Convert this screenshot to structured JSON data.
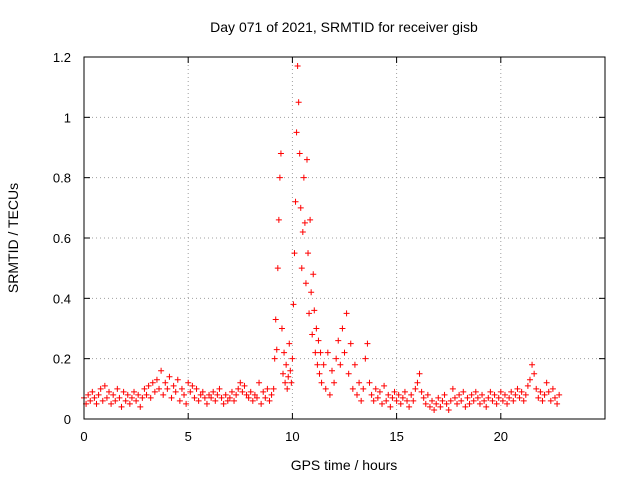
{
  "chart_data": {
    "type": "scatter",
    "title": "Day 071 of 2021, SRMTID for receiver gisb",
    "xlabel": "GPS time / hours",
    "ylabel": "SRMTID / TECUs",
    "xlim": [
      0,
      25
    ],
    "ylim": [
      0,
      1.2
    ],
    "xticks": [
      0,
      5,
      10,
      15,
      20
    ],
    "xtick_labels": [
      "0",
      "5",
      "10",
      "15",
      "20"
    ],
    "yticks": [
      0,
      0.2,
      0.4,
      0.6,
      0.8,
      1.0,
      1.2
    ],
    "ytick_labels": [
      "0",
      "0.2",
      "0.4",
      "0.6",
      "0.8",
      "1",
      "1.2"
    ],
    "grid": true,
    "marker": "+",
    "series": [
      {
        "name": "SRMTID",
        "color": "#ff0000",
        "points": [
          [
            0.0,
            0.07
          ],
          [
            0.1,
            0.05
          ],
          [
            0.2,
            0.08
          ],
          [
            0.3,
            0.06
          ],
          [
            0.4,
            0.09
          ],
          [
            0.5,
            0.07
          ],
          [
            0.6,
            0.05
          ],
          [
            0.7,
            0.08
          ],
          [
            0.8,
            0.1
          ],
          [
            0.9,
            0.06
          ],
          [
            1.0,
            0.11
          ],
          [
            1.1,
            0.07
          ],
          [
            1.2,
            0.09
          ],
          [
            1.3,
            0.05
          ],
          [
            1.4,
            0.08
          ],
          [
            1.5,
            0.06
          ],
          [
            1.6,
            0.1
          ],
          [
            1.7,
            0.07
          ],
          [
            1.8,
            0.04
          ],
          [
            1.9,
            0.09
          ],
          [
            2.0,
            0.06
          ],
          [
            2.1,
            0.08
          ],
          [
            2.2,
            0.05
          ],
          [
            2.3,
            0.07
          ],
          [
            2.4,
            0.09
          ],
          [
            2.5,
            0.06
          ],
          [
            2.6,
            0.08
          ],
          [
            2.7,
            0.04
          ],
          [
            2.8,
            0.07
          ],
          [
            2.9,
            0.1
          ],
          [
            3.0,
            0.08
          ],
          [
            3.1,
            0.11
          ],
          [
            3.2,
            0.07
          ],
          [
            3.3,
            0.12
          ],
          [
            3.4,
            0.09
          ],
          [
            3.5,
            0.13
          ],
          [
            3.6,
            0.1
          ],
          [
            3.7,
            0.16
          ],
          [
            3.8,
            0.08
          ],
          [
            3.9,
            0.12
          ],
          [
            4.0,
            0.1
          ],
          [
            4.1,
            0.14
          ],
          [
            4.2,
            0.07
          ],
          [
            4.3,
            0.11
          ],
          [
            4.4,
            0.09
          ],
          [
            4.5,
            0.13
          ],
          [
            4.6,
            0.06
          ],
          [
            4.7,
            0.1
          ],
          [
            4.8,
            0.08
          ],
          [
            4.9,
            0.05
          ],
          [
            5.0,
            0.12
          ],
          [
            5.1,
            0.09
          ],
          [
            5.2,
            0.11
          ],
          [
            5.3,
            0.07
          ],
          [
            5.4,
            0.1
          ],
          [
            5.5,
            0.06
          ],
          [
            5.6,
            0.08
          ],
          [
            5.7,
            0.09
          ],
          [
            5.8,
            0.07
          ],
          [
            5.9,
            0.05
          ],
          [
            6.0,
            0.08
          ],
          [
            6.1,
            0.07
          ],
          [
            6.2,
            0.09
          ],
          [
            6.3,
            0.06
          ],
          [
            6.4,
            0.08
          ],
          [
            6.5,
            0.1
          ],
          [
            6.6,
            0.07
          ],
          [
            6.7,
            0.05
          ],
          [
            6.8,
            0.08
          ],
          [
            6.9,
            0.06
          ],
          [
            7.0,
            0.07
          ],
          [
            7.1,
            0.09
          ],
          [
            7.2,
            0.06
          ],
          [
            7.3,
            0.08
          ],
          [
            7.4,
            0.1
          ],
          [
            7.5,
            0.12
          ],
          [
            7.6,
            0.09
          ],
          [
            7.7,
            0.11
          ],
          [
            7.8,
            0.08
          ],
          [
            7.9,
            0.07
          ],
          [
            8.0,
            0.09
          ],
          [
            8.1,
            0.06
          ],
          [
            8.2,
            0.08
          ],
          [
            8.3,
            0.07
          ],
          [
            8.4,
            0.12
          ],
          [
            8.5,
            0.05
          ],
          [
            8.6,
            0.09
          ],
          [
            8.7,
            0.07
          ],
          [
            8.8,
            0.1
          ],
          [
            8.9,
            0.06
          ],
          [
            9.0,
            0.08
          ],
          [
            9.1,
            0.1
          ],
          [
            9.15,
            0.2
          ],
          [
            9.2,
            0.33
          ],
          [
            9.25,
            0.23
          ],
          [
            9.3,
            0.5
          ],
          [
            9.35,
            0.66
          ],
          [
            9.4,
            0.8
          ],
          [
            9.45,
            0.88
          ],
          [
            9.5,
            0.3
          ],
          [
            9.55,
            0.15
          ],
          [
            9.6,
            0.22
          ],
          [
            9.65,
            0.12
          ],
          [
            9.7,
            0.18
          ],
          [
            9.75,
            0.1
          ],
          [
            9.8,
            0.14
          ],
          [
            9.85,
            0.25
          ],
          [
            9.9,
            0.16
          ],
          [
            9.95,
            0.12
          ],
          [
            10.0,
            0.2
          ],
          [
            10.05,
            0.38
          ],
          [
            10.1,
            0.55
          ],
          [
            10.15,
            0.72
          ],
          [
            10.2,
            0.95
          ],
          [
            10.25,
            1.17
          ],
          [
            10.3,
            1.05
          ],
          [
            10.35,
            0.88
          ],
          [
            10.4,
            0.7
          ],
          [
            10.45,
            0.5
          ],
          [
            10.5,
            0.62
          ],
          [
            10.55,
            0.8
          ],
          [
            10.6,
            0.65
          ],
          [
            10.65,
            0.45
          ],
          [
            10.7,
            0.86
          ],
          [
            10.75,
            0.55
          ],
          [
            10.8,
            0.35
          ],
          [
            10.85,
            0.66
          ],
          [
            10.9,
            0.42
          ],
          [
            10.95,
            0.28
          ],
          [
            11.0,
            0.48
          ],
          [
            11.05,
            0.36
          ],
          [
            11.1,
            0.22
          ],
          [
            11.15,
            0.3
          ],
          [
            11.2,
            0.18
          ],
          [
            11.25,
            0.26
          ],
          [
            11.3,
            0.15
          ],
          [
            11.35,
            0.22
          ],
          [
            11.4,
            0.12
          ],
          [
            11.5,
            0.18
          ],
          [
            11.6,
            0.1
          ],
          [
            11.7,
            0.22
          ],
          [
            11.8,
            0.08
          ],
          [
            11.9,
            0.16
          ],
          [
            12.0,
            0.12
          ],
          [
            12.1,
            0.2
          ],
          [
            12.2,
            0.26
          ],
          [
            12.3,
            0.18
          ],
          [
            12.4,
            0.3
          ],
          [
            12.5,
            0.22
          ],
          [
            12.6,
            0.35
          ],
          [
            12.7,
            0.15
          ],
          [
            12.8,
            0.25
          ],
          [
            12.9,
            0.1
          ],
          [
            13.0,
            0.18
          ],
          [
            13.1,
            0.08
          ],
          [
            13.2,
            0.12
          ],
          [
            13.3,
            0.06
          ],
          [
            13.4,
            0.1
          ],
          [
            13.5,
            0.2
          ],
          [
            13.6,
            0.25
          ],
          [
            13.7,
            0.12
          ],
          [
            13.8,
            0.08
          ],
          [
            13.9,
            0.06
          ],
          [
            14.0,
            0.1
          ],
          [
            14.1,
            0.07
          ],
          [
            14.2,
            0.09
          ],
          [
            14.3,
            0.05
          ],
          [
            14.4,
            0.11
          ],
          [
            14.5,
            0.06
          ],
          [
            14.6,
            0.08
          ],
          [
            14.7,
            0.04
          ],
          [
            14.8,
            0.07
          ],
          [
            14.9,
            0.09
          ],
          [
            15.0,
            0.06
          ],
          [
            15.1,
            0.08
          ],
          [
            15.2,
            0.05
          ],
          [
            15.3,
            0.07
          ],
          [
            15.4,
            0.09
          ],
          [
            15.5,
            0.06
          ],
          [
            15.6,
            0.04
          ],
          [
            15.7,
            0.08
          ],
          [
            15.8,
            0.06
          ],
          [
            15.9,
            0.1
          ],
          [
            16.0,
            0.12
          ],
          [
            16.1,
            0.15
          ],
          [
            16.2,
            0.09
          ],
          [
            16.3,
            0.07
          ],
          [
            16.4,
            0.05
          ],
          [
            16.5,
            0.08
          ],
          [
            16.6,
            0.04
          ],
          [
            16.7,
            0.06
          ],
          [
            16.8,
            0.03
          ],
          [
            16.9,
            0.05
          ],
          [
            17.0,
            0.07
          ],
          [
            17.1,
            0.04
          ],
          [
            17.2,
            0.06
          ],
          [
            17.3,
            0.08
          ],
          [
            17.4,
            0.05
          ],
          [
            17.5,
            0.03
          ],
          [
            17.6,
            0.06
          ],
          [
            17.7,
            0.1
          ],
          [
            17.8,
            0.07
          ],
          [
            17.9,
            0.05
          ],
          [
            18.0,
            0.08
          ],
          [
            18.1,
            0.06
          ],
          [
            18.2,
            0.09
          ],
          [
            18.3,
            0.04
          ],
          [
            18.4,
            0.07
          ],
          [
            18.5,
            0.05
          ],
          [
            18.6,
            0.08
          ],
          [
            18.7,
            0.06
          ],
          [
            18.8,
            0.09
          ],
          [
            18.9,
            0.07
          ],
          [
            19.0,
            0.05
          ],
          [
            19.1,
            0.08
          ],
          [
            19.2,
            0.06
          ],
          [
            19.3,
            0.04
          ],
          [
            19.4,
            0.07
          ],
          [
            19.5,
            0.09
          ],
          [
            19.6,
            0.06
          ],
          [
            19.7,
            0.08
          ],
          [
            19.8,
            0.05
          ],
          [
            19.9,
            0.07
          ],
          [
            20.0,
            0.09
          ],
          [
            20.1,
            0.06
          ],
          [
            20.2,
            0.08
          ],
          [
            20.3,
            0.05
          ],
          [
            20.4,
            0.07
          ],
          [
            20.5,
            0.09
          ],
          [
            20.6,
            0.06
          ],
          [
            20.7,
            0.08
          ],
          [
            20.8,
            0.1
          ],
          [
            20.9,
            0.07
          ],
          [
            21.0,
            0.09
          ],
          [
            21.1,
            0.06
          ],
          [
            21.2,
            0.08
          ],
          [
            21.3,
            0.11
          ],
          [
            21.4,
            0.13
          ],
          [
            21.5,
            0.18
          ],
          [
            21.6,
            0.15
          ],
          [
            21.7,
            0.1
          ],
          [
            21.8,
            0.07
          ],
          [
            21.9,
            0.09
          ],
          [
            22.0,
            0.06
          ],
          [
            22.1,
            0.08
          ],
          [
            22.2,
            0.12
          ],
          [
            22.3,
            0.09
          ],
          [
            22.4,
            0.06
          ],
          [
            22.5,
            0.1
          ],
          [
            22.6,
            0.07
          ],
          [
            22.7,
            0.05
          ],
          [
            22.8,
            0.08
          ]
        ]
      }
    ]
  }
}
